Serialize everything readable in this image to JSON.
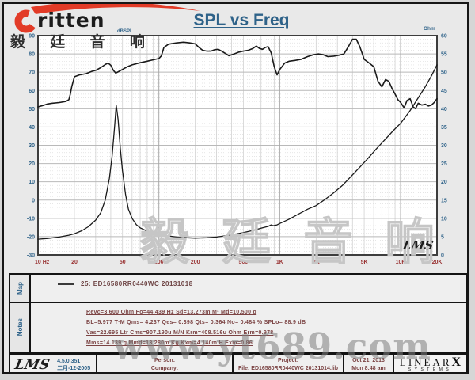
{
  "header": {
    "title": "SPL vs Freq",
    "logo_brand": "ritten",
    "logo_cn": "毅 廷 音 响",
    "left_axis_unit": "dBSPL",
    "right_axis_unit": "Ohm"
  },
  "chart_data": {
    "type": "line",
    "title": "SPL vs Freq",
    "x_axis": {
      "scale": "log",
      "min": 10,
      "max": 20000,
      "unit": "Hz",
      "tick_values": [
        10,
        20,
        50,
        100,
        200,
        500,
        1000,
        2000,
        5000,
        10000,
        20000
      ],
      "tick_labels": [
        "10 Hz",
        "20",
        "50",
        "100",
        "200",
        "500",
        "1K",
        "2K",
        "5K",
        "10K",
        "20K"
      ]
    },
    "y_left": {
      "label": "dBSPL",
      "min": -30,
      "max": 90,
      "step": 10
    },
    "y_right": {
      "label": "Ohm",
      "min": 0,
      "max": 60,
      "step": 5
    },
    "grid": true,
    "legend_entry": "25:  ED16580RR0440WC  20131018",
    "series": [
      {
        "name": "SPL",
        "axis": "left",
        "unit": "dBSPL",
        "points": [
          [
            10,
            51
          ],
          [
            11,
            51.8
          ],
          [
            12,
            52.6
          ],
          [
            13,
            53
          ],
          [
            15,
            53.4
          ],
          [
            17,
            54
          ],
          [
            18,
            55
          ],
          [
            18.5,
            58
          ],
          [
            19,
            62
          ],
          [
            20,
            67.5
          ],
          [
            22,
            68.5
          ],
          [
            25,
            69.2
          ],
          [
            28,
            70.5
          ],
          [
            30,
            71
          ],
          [
            33,
            72.5
          ],
          [
            36,
            74.2
          ],
          [
            38,
            75
          ],
          [
            40,
            73.8
          ],
          [
            42,
            71
          ],
          [
            44,
            69.5
          ],
          [
            47,
            70.5
          ],
          [
            50,
            71.5
          ],
          [
            55,
            73
          ],
          [
            60,
            74
          ],
          [
            70,
            75.2
          ],
          [
            80,
            76
          ],
          [
            90,
            76.8
          ],
          [
            100,
            77.5
          ],
          [
            105,
            79
          ],
          [
            110,
            83.5
          ],
          [
            120,
            85.3
          ],
          [
            140,
            86
          ],
          [
            160,
            86.4
          ],
          [
            180,
            86
          ],
          [
            200,
            85.5
          ],
          [
            215,
            83.5
          ],
          [
            230,
            82
          ],
          [
            250,
            81.5
          ],
          [
            270,
            81.5
          ],
          [
            290,
            82.3
          ],
          [
            310,
            82.5
          ],
          [
            330,
            81.5
          ],
          [
            360,
            80
          ],
          [
            380,
            79
          ],
          [
            420,
            80
          ],
          [
            460,
            81
          ],
          [
            500,
            81.5
          ],
          [
            550,
            82
          ],
          [
            600,
            83
          ],
          [
            640,
            84.3
          ],
          [
            680,
            83
          ],
          [
            720,
            82.5
          ],
          [
            760,
            83.5
          ],
          [
            800,
            84
          ],
          [
            850,
            80.5
          ],
          [
            900,
            73
          ],
          [
            950,
            68.5
          ],
          [
            1000,
            71.5
          ],
          [
            1100,
            75
          ],
          [
            1200,
            76
          ],
          [
            1350,
            76.5
          ],
          [
            1500,
            77
          ],
          [
            1700,
            78.5
          ],
          [
            1900,
            79.5
          ],
          [
            2100,
            80
          ],
          [
            2300,
            79.5
          ],
          [
            2500,
            78.5
          ],
          [
            2800,
            78.8
          ],
          [
            3100,
            79.3
          ],
          [
            3400,
            80
          ],
          [
            3700,
            84
          ],
          [
            4000,
            88
          ],
          [
            4300,
            88
          ],
          [
            4600,
            84
          ],
          [
            5000,
            77
          ],
          [
            5500,
            75
          ],
          [
            6000,
            73
          ],
          [
            6500,
            65
          ],
          [
            7000,
            62
          ],
          [
            7500,
            66
          ],
          [
            8000,
            65
          ],
          [
            8500,
            61
          ],
          [
            9000,
            58
          ],
          [
            9500,
            55
          ],
          [
            10000,
            53.5
          ],
          [
            10700,
            50.5
          ],
          [
            11300,
            54.5
          ],
          [
            12000,
            55.5
          ],
          [
            12700,
            51
          ],
          [
            13300,
            50
          ],
          [
            14000,
            53
          ],
          [
            15000,
            52
          ],
          [
            16000,
            52.5
          ],
          [
            17000,
            51.5
          ],
          [
            18000,
            52
          ],
          [
            19000,
            53.5
          ],
          [
            20000,
            55.5
          ]
        ]
      },
      {
        "name": "Impedance",
        "axis": "right",
        "unit": "Ohm",
        "points": [
          [
            10,
            4.3
          ],
          [
            12,
            4.5
          ],
          [
            15,
            4.9
          ],
          [
            18,
            5.4
          ],
          [
            20,
            5.8
          ],
          [
            23,
            6.6
          ],
          [
            26,
            7.7
          ],
          [
            30,
            9.5
          ],
          [
            33,
            11.5
          ],
          [
            36,
            15
          ],
          [
            39,
            21
          ],
          [
            41,
            27
          ],
          [
            43,
            35
          ],
          [
            44.4,
            41
          ],
          [
            46,
            37
          ],
          [
            48,
            29
          ],
          [
            50,
            23
          ],
          [
            53,
            16.5
          ],
          [
            56,
            12.5
          ],
          [
            60,
            10
          ],
          [
            65,
            8.3
          ],
          [
            70,
            7.4
          ],
          [
            80,
            6.5
          ],
          [
            90,
            6
          ],
          [
            100,
            5.7
          ],
          [
            120,
            5.2
          ],
          [
            140,
            4.9
          ],
          [
            170,
            4.7
          ],
          [
            200,
            4.6
          ],
          [
            250,
            4.7
          ],
          [
            300,
            4.9
          ],
          [
            350,
            5.2
          ],
          [
            400,
            5.5
          ],
          [
            450,
            5.8
          ],
          [
            500,
            6.1
          ],
          [
            600,
            6.7
          ],
          [
            700,
            7.3
          ],
          [
            800,
            7.8
          ],
          [
            850,
            8.2
          ],
          [
            880,
            8.0
          ],
          [
            950,
            8.2
          ],
          [
            1000,
            8.6
          ],
          [
            1200,
            9.8
          ],
          [
            1400,
            11
          ],
          [
            1700,
            12.5
          ],
          [
            2000,
            13.5
          ],
          [
            2400,
            15.3
          ],
          [
            2800,
            17
          ],
          [
            3300,
            19
          ],
          [
            3900,
            21.5
          ],
          [
            4600,
            24
          ],
          [
            5400,
            26.5
          ],
          [
            6300,
            29
          ],
          [
            7400,
            31.5
          ],
          [
            8700,
            34
          ],
          [
            10000,
            36
          ],
          [
            12000,
            39.5
          ],
          [
            14000,
            43
          ],
          [
            16000,
            46
          ],
          [
            18000,
            49
          ],
          [
            20000,
            52
          ]
        ]
      }
    ],
    "colors": {
      "curve": "#1a1a1a",
      "x_tick_label": "#993333",
      "y_tick_label": "#2e6289",
      "grid_major": "#b9b9b9",
      "grid_minor": "#dddddd",
      "frame": "#3d3d3d"
    }
  },
  "map_panel": {
    "label": "Map",
    "legend": "25:  ED16580RR0440WC  20131018"
  },
  "notes_panel": {
    "label": "Notes",
    "lines": [
      "Revc=3.600 Ohm  Fo=44.439 Hz  Sd=13.273m M²  Md=10.500 g",
      "BL=5.977 T·M  Qms= 4.237  Qes= 0.398  Qts= 0.364  No= 0.484 %  SPLo= 88.9 dB",
      "Vas=22.695 Ltr  Cms=907.190u M/N  Krm=408.516u Ohm  Erm=0.978",
      "Mms=14.139 g  Mmd=13.280m Kg  Kxm=4.140m H  Exm=0.86"
    ]
  },
  "footer": {
    "lms_logo": "LMS",
    "version": "4.5.0.351",
    "version_date": "二月-12-2005",
    "person_label": "Person:",
    "company_label": "Company:",
    "project_label": "Project:",
    "file_label": "File: ED16580RR0440WC 20131014.lib",
    "date": "Oct 21, 2013",
    "time": "Mon  8:48 am",
    "brand_main": "LINEAR",
    "brand_x": "X",
    "brand_sub": "SYSTEMS"
  },
  "watermarks": {
    "chart_cn": "毅 廷 音 响",
    "site": "www.yt689.com",
    "lms_script": "LMS"
  }
}
